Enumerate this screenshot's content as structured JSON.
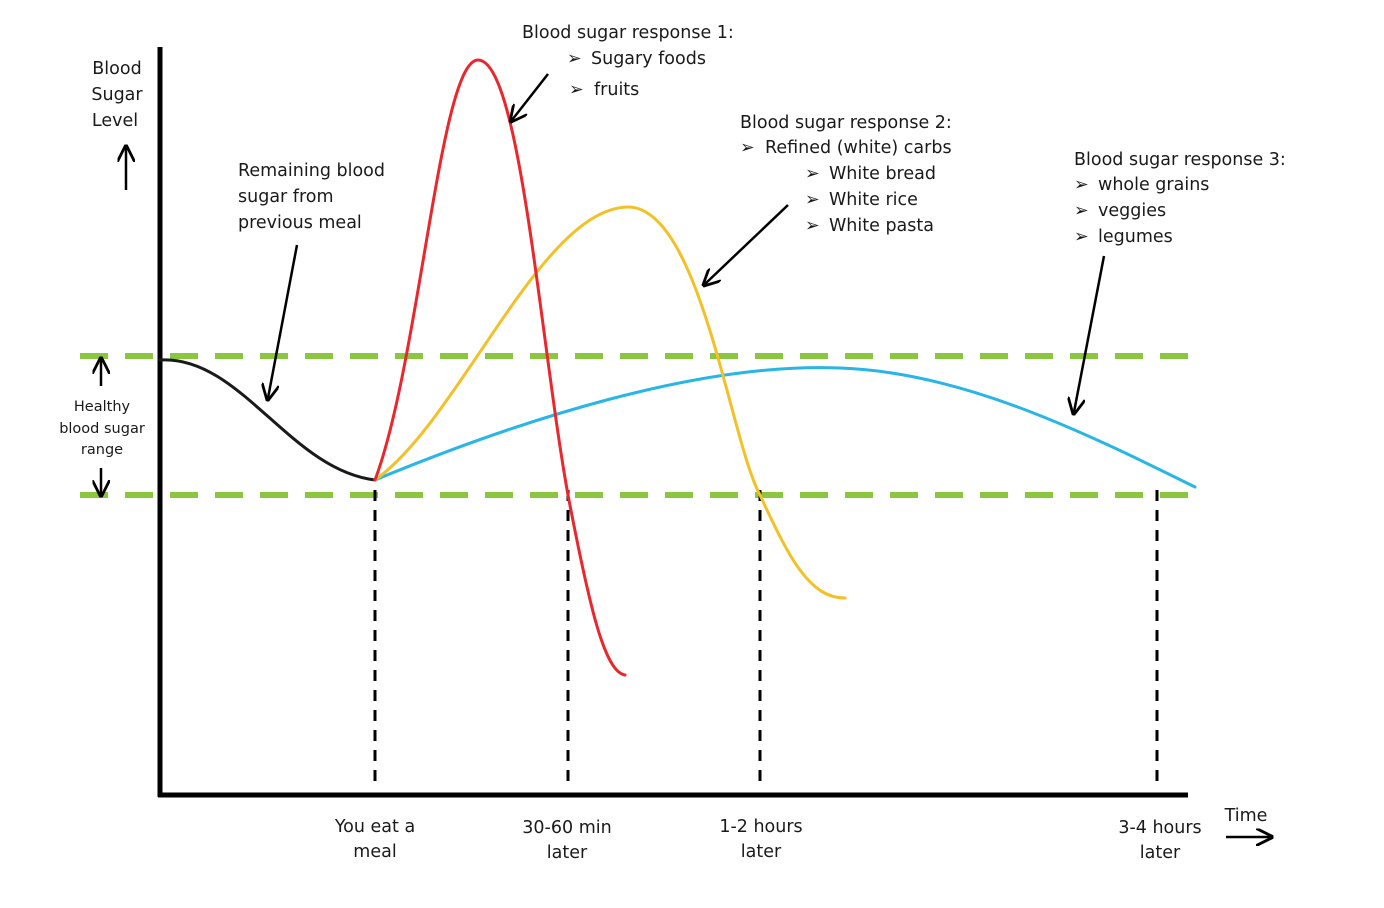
{
  "y_axis_label": [
    "Blood",
    "Sugar",
    "Level"
  ],
  "x_axis_label": "Time",
  "healthy_range_label": [
    "Healthy",
    "blood sugar",
    "range"
  ],
  "remaining_label": [
    "Remaining blood",
    "sugar from",
    "previous meal"
  ],
  "response1": {
    "title": "Blood sugar response 1:",
    "items": [
      "Sugary foods",
      "fruits"
    ],
    "color": "#e8282e"
  },
  "response2": {
    "title": "Blood sugar response 2:",
    "group": "Refined (white) carbs",
    "items": [
      "White bread",
      "White rice",
      "White pasta"
    ],
    "color": "#f2c12a"
  },
  "response3": {
    "title": "Blood sugar response 3:",
    "items": [
      "whole grains",
      "veggies",
      "legumes"
    ],
    "color": "#29b5e5"
  },
  "baseline_color": "#1a1a1a",
  "healthy_band_color": "#8ac640",
  "time_marks": [
    [
      "You eat a",
      "meal"
    ],
    [
      "30-60 min",
      "later"
    ],
    [
      "1-2 hours",
      "later"
    ],
    [
      "3-4 hours",
      "later"
    ]
  ],
  "bullet_glyph": "➢"
}
